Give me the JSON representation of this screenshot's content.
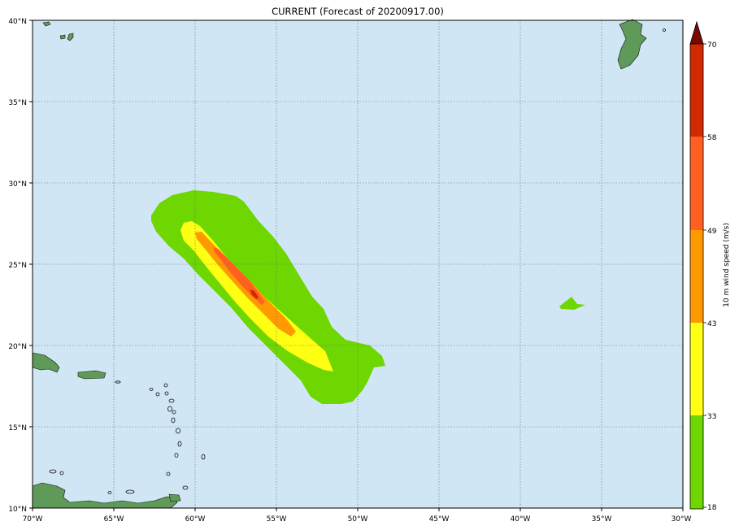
{
  "title": "CURRENT (Forecast of 20200917.00)",
  "map": {
    "extent": {
      "lon": [
        -70,
        -30
      ],
      "lat": [
        10,
        40
      ]
    },
    "ocean_color": "#d0e6f5",
    "gridlines": "dotted",
    "lon_ticks": [
      "70°W",
      "65°W",
      "60°W",
      "55°W",
      "50°W",
      "45°W",
      "40°W",
      "35°W",
      "30°W"
    ],
    "lat_ticks": [
      "40°N",
      "35°N",
      "30°N",
      "25°N",
      "20°N",
      "15°N",
      "10°N"
    ]
  },
  "colorbar": {
    "label": "10 m wind speed (m/s)",
    "ticks": [
      "18",
      "33",
      "43",
      "49",
      "58",
      "70"
    ],
    "levels": [
      {
        "from": 18,
        "to": 33,
        "color": "#6ed600"
      },
      {
        "from": 33,
        "to": 43,
        "color": "#ffff14"
      },
      {
        "from": 43,
        "to": 49,
        "color": "#ff9900"
      },
      {
        "from": 49,
        "to": 58,
        "color": "#ff6022"
      },
      {
        "from": 58,
        "to": 70,
        "color": "#d22a00"
      }
    ],
    "extend_color": "#7a0a00"
  }
}
